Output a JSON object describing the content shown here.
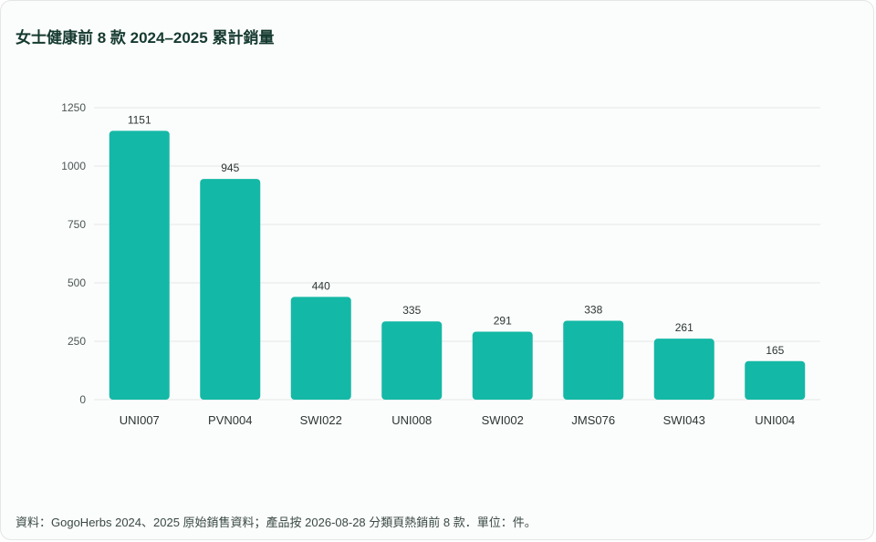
{
  "title": "女士健康前 8 款 2024–2025 累計銷量",
  "footer": "資料：GogoHerbs 2024、2025 原始銷售資料；產品按 2026-08-28 分類頁熱銷前 8 款．單位：件。",
  "colors": {
    "bar": "#14b8a6",
    "grid": "#e6e9e8",
    "title": "#153a2f"
  },
  "chart_data": {
    "type": "bar",
    "title": "女士健康前 8 款 2024–2025 累計銷量",
    "xlabel": "",
    "ylabel": "",
    "categories": [
      "UNI007",
      "PVN004",
      "SWI022",
      "UNI008",
      "SWI002",
      "JMS076",
      "SWI043",
      "UNI004"
    ],
    "values": [
      1151,
      945,
      440,
      335,
      291,
      338,
      261,
      165
    ],
    "ylim": [
      0,
      1250
    ],
    "yticks": [
      0,
      250,
      500,
      750,
      1000,
      1250
    ],
    "grid": true,
    "legend": "none"
  }
}
